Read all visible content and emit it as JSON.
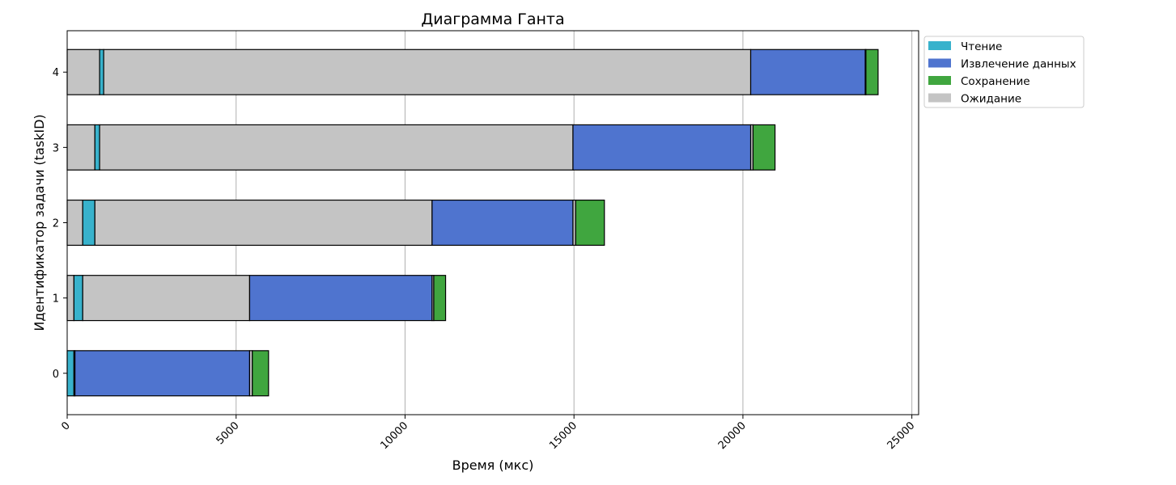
{
  "chart_data": {
    "type": "bar",
    "orientation": "horizontal",
    "stacked": true,
    "title": "Диаграмма Ганта",
    "xlabel": "Время (мкс)",
    "ylabel": "Идентификатор задачи (taskID)",
    "xlim": [
      0,
      25200
    ],
    "ylim": [
      -0.55,
      4.55
    ],
    "xticks": [
      0,
      5000,
      10000,
      15000,
      20000,
      25000
    ],
    "yticks": [
      0,
      1,
      2,
      3,
      4
    ],
    "grid": "x",
    "legend_position": "outside-top-right",
    "legend": [
      {
        "name": "Чтение",
        "color": "#38b2cc"
      },
      {
        "name": "Извлечение данных",
        "color": "#4f74cf"
      },
      {
        "name": "Сохранение",
        "color": "#40a63f"
      },
      {
        "name": "Ожидание",
        "color": "#c4c4c4"
      }
    ],
    "tasks": [
      {
        "task_id": 0,
        "segments": [
          {
            "phase": "Чтение",
            "start": 0,
            "end": 200
          },
          {
            "phase": "Ожидание",
            "start": 200,
            "end": 230
          },
          {
            "phase": "Извлечение данных",
            "start": 230,
            "end": 5400
          },
          {
            "phase": "Ожидание",
            "start": 5400,
            "end": 5480
          },
          {
            "phase": "Сохранение",
            "start": 5480,
            "end": 5960
          }
        ]
      },
      {
        "task_id": 1,
        "segments": [
          {
            "phase": "Ожидание",
            "start": 0,
            "end": 200
          },
          {
            "phase": "Чтение",
            "start": 200,
            "end": 460
          },
          {
            "phase": "Ожидание",
            "start": 460,
            "end": 5400
          },
          {
            "phase": "Извлечение данных",
            "start": 5400,
            "end": 10800
          },
          {
            "phase": "Ожидание",
            "start": 10800,
            "end": 10850
          },
          {
            "phase": "Сохранение",
            "start": 10850,
            "end": 11200
          }
        ]
      },
      {
        "task_id": 2,
        "segments": [
          {
            "phase": "Ожидание",
            "start": 0,
            "end": 460
          },
          {
            "phase": "Чтение",
            "start": 460,
            "end": 820
          },
          {
            "phase": "Ожидание",
            "start": 820,
            "end": 10800
          },
          {
            "phase": "Извлечение данных",
            "start": 10800,
            "end": 14970
          },
          {
            "phase": "Ожидание",
            "start": 14970,
            "end": 15050
          },
          {
            "phase": "Сохранение",
            "start": 15050,
            "end": 15900
          }
        ]
      },
      {
        "task_id": 3,
        "segments": [
          {
            "phase": "Ожидание",
            "start": 0,
            "end": 820
          },
          {
            "phase": "Чтение",
            "start": 820,
            "end": 960
          },
          {
            "phase": "Ожидание",
            "start": 960,
            "end": 14970
          },
          {
            "phase": "Извлечение данных",
            "start": 14970,
            "end": 20230
          },
          {
            "phase": "Ожидание",
            "start": 20230,
            "end": 20300
          },
          {
            "phase": "Сохранение",
            "start": 20300,
            "end": 20950
          }
        ]
      },
      {
        "task_id": 4,
        "segments": [
          {
            "phase": "Ожидание",
            "start": 0,
            "end": 960
          },
          {
            "phase": "Чтение",
            "start": 960,
            "end": 1080
          },
          {
            "phase": "Ожидание",
            "start": 1080,
            "end": 20230
          },
          {
            "phase": "Извлечение данных",
            "start": 20230,
            "end": 23620
          },
          {
            "phase": "Ожидание",
            "start": 23620,
            "end": 23640
          },
          {
            "phase": "Сохранение",
            "start": 23640,
            "end": 24000
          }
        ]
      }
    ]
  }
}
